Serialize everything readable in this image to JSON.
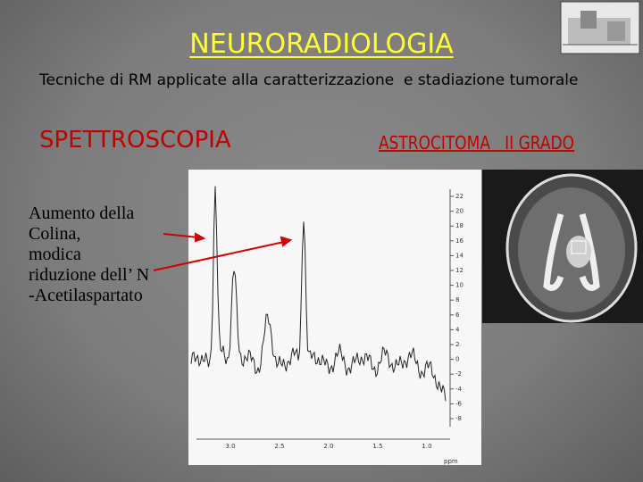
{
  "header": {
    "title": "NEURORADIOLOGIA",
    "subtitle": "Tecniche di RM applicate alla caratterizzazione  e stadiazione tumorale"
  },
  "sections": {
    "left_heading": "SPETTROSCOPIA",
    "right_heading": "ASTROCITOMA   II GRADO"
  },
  "annotation": {
    "lines": [
      "Aumento della",
      "Colina,",
      "modica",
      "riduzione dell’ N",
      "-Acetilaspartato"
    ]
  },
  "spectrum": {
    "y_labels": [
      "22",
      "20",
      "18",
      "16",
      "14",
      "12",
      "10",
      "8",
      "6",
      "4",
      "2",
      "0",
      "-2",
      "-4",
      "-6",
      "-8"
    ],
    "x_labels": [
      "3.0",
      "2.5",
      "2.0",
      "1.5",
      "1.0"
    ],
    "x_unit": "ppm"
  }
}
